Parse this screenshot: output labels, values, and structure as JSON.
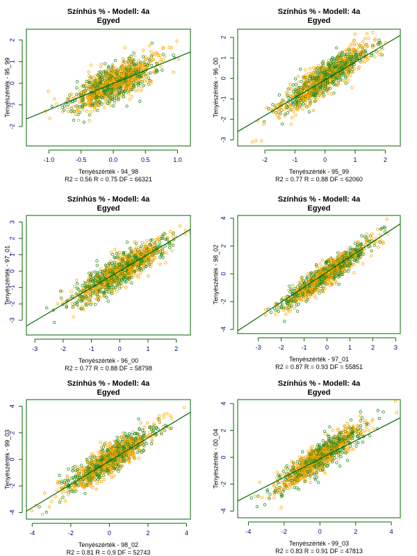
{
  "colors": {
    "frame": "#006400",
    "tick_labels_x": "#00008B",
    "tick_labels_y": "#00008B",
    "series_a": "#FFA500",
    "series_b": "#228B22",
    "fit_line": "#006400"
  },
  "chart_data": [
    {
      "type": "scatter",
      "title": "Színhús % - Modell: 4a",
      "subtitle": "Egyed",
      "xlabel": "Tenyészérték - 94_98",
      "ylabel": "Tenyészérték - 95_99",
      "stats": "R2 =  0.56   R =  0.75   DF =  66321",
      "xlim": [
        -1.35,
        1.2
      ],
      "ylim": [
        -2.9,
        2.5
      ],
      "xticks": [
        -1.0,
        -0.5,
        0.0,
        0.5,
        1.0
      ],
      "xtick_labels": [
        "-1.0",
        "-0.5",
        "0.0",
        "0.5",
        "1.0"
      ],
      "yticks": [
        -2,
        -1,
        0,
        1,
        2
      ],
      "ytick_labels": [
        "-2",
        "-1",
        "0",
        "1",
        "2"
      ],
      "r": 0.75,
      "x_sd": 0.32,
      "y_sd": 0.62,
      "fit_line": [
        [
          -1.35,
          -1.65
        ],
        [
          1.2,
          1.45
        ]
      ]
    },
    {
      "type": "scatter",
      "title": "Színhús % - Modell: 4a",
      "subtitle": "Egyed",
      "xlabel": "Tenyészérték - 95_99",
      "ylabel": "Tenyészérték - 96_00",
      "stats": "R2 =  0.77   R =  0.88   DF =  62060",
      "xlim": [
        -2.9,
        2.5
      ],
      "ylim": [
        -3.3,
        2.4
      ],
      "xticks": [
        -2,
        -1,
        0,
        1,
        2
      ],
      "xtick_labels": [
        "-2",
        "-1",
        "0",
        "1",
        "2"
      ],
      "yticks": [
        -3,
        -2,
        -1,
        0,
        1,
        2
      ],
      "ytick_labels": [
        "-3",
        "-2",
        "-1",
        "0",
        "1",
        "2"
      ],
      "r": 0.88,
      "x_sd": 0.72,
      "y_sd": 0.78,
      "fit_line": [
        [
          -2.9,
          -2.6
        ],
        [
          2.5,
          2.1
        ]
      ]
    },
    {
      "type": "scatter",
      "title": "Színhús % - Modell: 4a",
      "subtitle": "Egyed",
      "xlabel": "Tenyészérték - 96_00",
      "ylabel": "Tenyészérték - 97_01",
      "stats": "R2 =  0.77   R =  0.88   DF =  58798",
      "xlim": [
        -3.3,
        2.5
      ],
      "ylim": [
        -3.9,
        3.4
      ],
      "xticks": [
        -3,
        -2,
        -1,
        0,
        1,
        2
      ],
      "xtick_labels": [
        "-3",
        "-2",
        "-1",
        "0",
        "1",
        "2"
      ],
      "yticks": [
        -3,
        -2,
        -1,
        0,
        1,
        2,
        3
      ],
      "ytick_labels": [
        "-3",
        "-2",
        "-1",
        "0",
        "1",
        "2",
        "3"
      ],
      "r": 0.88,
      "x_sd": 0.8,
      "y_sd": 0.95,
      "fit_line": [
        [
          -3.3,
          -3.35
        ],
        [
          2.5,
          2.55
        ]
      ]
    },
    {
      "type": "scatter",
      "title": "Színhús % - Modell: 4a",
      "subtitle": "Egyed",
      "xlabel": "Tenyészérték - 97_01",
      "ylabel": "Tenyészérték - 98_02",
      "stats": "R2 =  0.87   R =  0.93   DF =  55851",
      "xlim": [
        -3.9,
        3.2
      ],
      "ylim": [
        -4.3,
        4.2
      ],
      "xticks": [
        -3,
        -2,
        -1,
        0,
        1,
        2,
        3
      ],
      "xtick_labels": [
        "-3",
        "-2",
        "-1",
        "0",
        "1",
        "2",
        "3"
      ],
      "yticks": [
        -4,
        -2,
        0,
        2,
        4
      ],
      "ytick_labels": [
        "-4",
        "-2",
        "0",
        "2",
        "4"
      ],
      "r": 0.93,
      "x_sd": 0.95,
      "y_sd": 1.15,
      "fit_line": [
        [
          -3.9,
          -4.1
        ],
        [
          3.2,
          3.6
        ]
      ]
    },
    {
      "type": "scatter",
      "title": "Színhús % - Modell: 4a",
      "subtitle": "Egyed",
      "xlabel": "Tenyészérték - 98_02",
      "ylabel": "Tenyészérték - 99_03",
      "stats": "R2 =  0.81   R =  0.9   DF =  52743",
      "xlim": [
        -4.3,
        4.2
      ],
      "ylim": [
        -4.5,
        4.5
      ],
      "xticks": [
        -4,
        -2,
        0,
        2,
        4
      ],
      "xtick_labels": [
        "-4",
        "-2",
        "0",
        "2",
        "4"
      ],
      "yticks": [
        -4,
        -2,
        0,
        2,
        4
      ],
      "ytick_labels": [
        "-4",
        "-2",
        "0",
        "2",
        "4"
      ],
      "r": 0.9,
      "x_sd": 1.15,
      "y_sd": 1.2,
      "fit_line": [
        [
          -4.3,
          -3.9
        ],
        [
          4.2,
          3.55
        ]
      ]
    },
    {
      "type": "scatter",
      "title": "Színhús % - Modell: 4a",
      "subtitle": "Egyed",
      "xlabel": "Tenyészérték - 99_03",
      "ylabel": "Tenyészérték - 00_04",
      "stats": "R2 =  0.83   R =  0.91   DF =  47813",
      "xlim": [
        -4.6,
        4.5
      ],
      "ylim": [
        -4.5,
        4.3
      ],
      "xticks": [
        -4,
        -2,
        0,
        2,
        4
      ],
      "xtick_labels": [
        "-4",
        "-2",
        "0",
        "2",
        "4"
      ],
      "yticks": [
        -4,
        -2,
        0,
        2,
        4
      ],
      "ytick_labels": [
        "-4",
        "-2",
        "0",
        "2",
        "4"
      ],
      "r": 0.91,
      "x_sd": 1.2,
      "y_sd": 1.2,
      "fit_line": [
        [
          -4.6,
          -3.25
        ],
        [
          4.5,
          2.95
        ]
      ]
    }
  ]
}
